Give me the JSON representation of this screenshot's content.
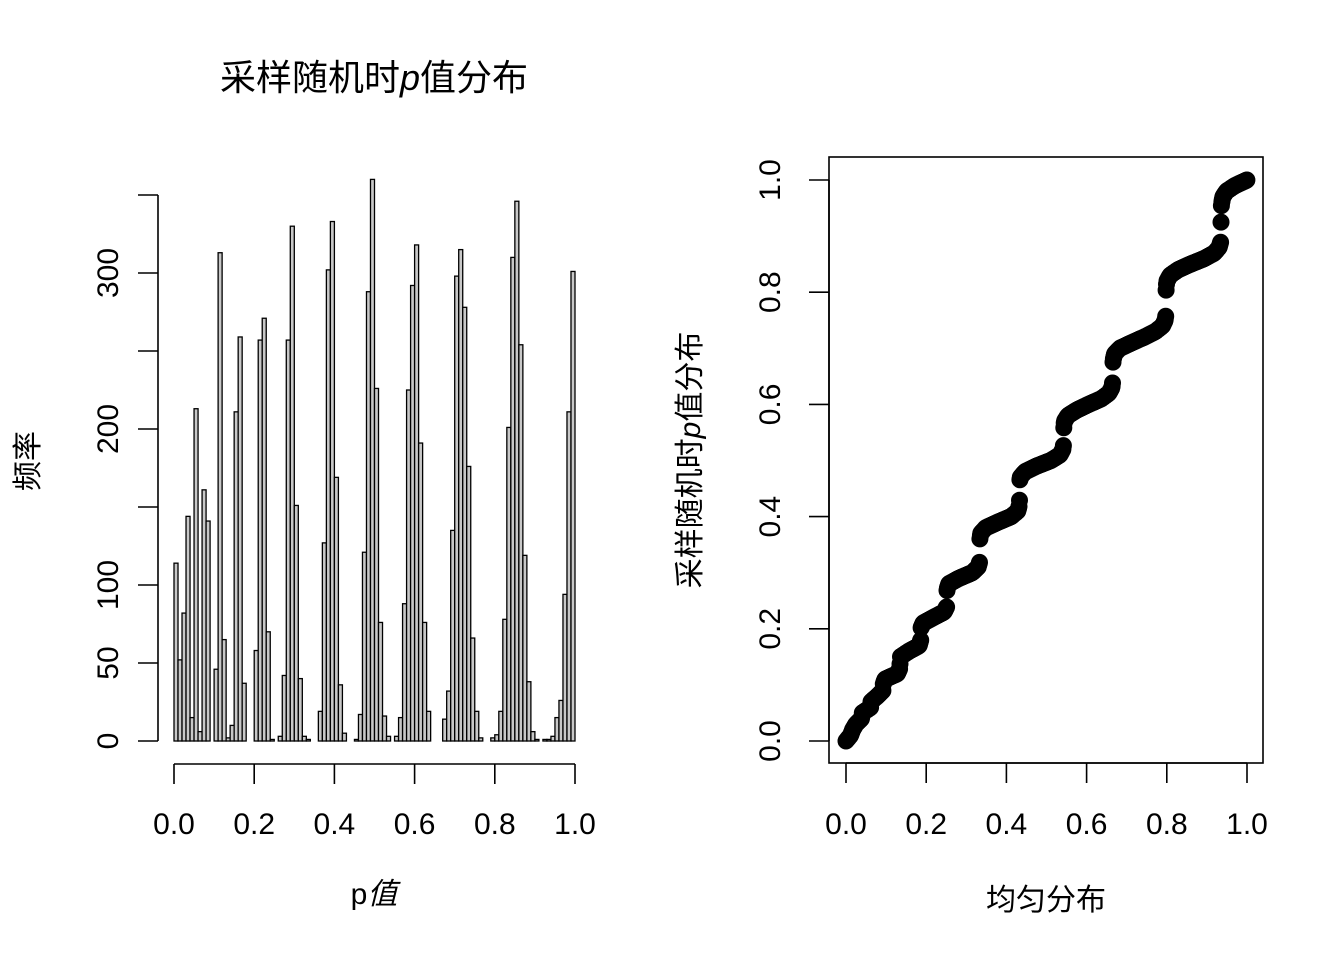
{
  "chart_data": [
    {
      "type": "bar",
      "subtype": "histogram",
      "title": "采样随机时p值分布",
      "title_parts": [
        "采样随机时",
        "p",
        "值分布"
      ],
      "xlabel": "p值",
      "xlabel_parts": [
        "p",
        "值"
      ],
      "ylabel": "频率",
      "xlim": [
        0,
        1
      ],
      "ylim": [
        0,
        350
      ],
      "bin_width": 0.01,
      "bin_start": 0.0,
      "x_ticks": [
        0.0,
        0.2,
        0.4,
        0.6,
        0.8,
        1.0
      ],
      "x_tick_labels": [
        "0.0",
        "0.2",
        "0.4",
        "0.6",
        "0.8",
        "1.0"
      ],
      "y_ticks": [
        0,
        50,
        100,
        150,
        200,
        250,
        300,
        350
      ],
      "y_tick_labels": [
        "0",
        "50",
        "100",
        "",
        "200",
        "",
        "300",
        ""
      ],
      "grid": false,
      "bar_fill": "#c8c8c8",
      "bar_stroke": "#000000",
      "values": [
        114,
        52,
        82,
        144,
        15,
        213,
        6,
        161,
        141,
        0,
        46,
        313,
        65,
        2,
        10,
        211,
        259,
        37,
        0,
        0,
        58,
        257,
        271,
        70,
        1,
        0,
        3,
        42,
        257,
        330,
        151,
        40,
        3,
        1,
        0,
        0,
        19,
        127,
        302,
        333,
        169,
        36,
        5,
        0,
        0,
        1,
        17,
        121,
        288,
        360,
        226,
        76,
        16,
        3,
        0,
        3,
        15,
        88,
        225,
        292,
        318,
        191,
        76,
        19,
        0,
        0,
        0,
        14,
        32,
        135,
        298,
        315,
        278,
        176,
        66,
        19,
        2,
        0,
        0,
        2,
        4,
        19,
        78,
        201,
        310,
        346,
        254,
        119,
        38,
        6,
        1,
        0,
        1,
        1,
        3,
        15,
        26,
        94,
        211,
        301
      ]
    },
    {
      "type": "scatter",
      "subtype": "qq",
      "title": "",
      "xlabel": "均匀分布",
      "ylabel": "采样随机时p值分布",
      "ylabel_parts": [
        "采样随机时",
        "p",
        "值分布"
      ],
      "xlim": [
        0,
        1
      ],
      "ylim": [
        0,
        1
      ],
      "x_ticks": [
        0.0,
        0.2,
        0.4,
        0.6,
        0.8,
        1.0
      ],
      "x_tick_labels": [
        "0.0",
        "0.2",
        "0.4",
        "0.6",
        "0.8",
        "1.0"
      ],
      "y_ticks": [
        0.0,
        0.2,
        0.4,
        0.6,
        0.8,
        1.0
      ],
      "y_tick_labels": [
        "0.0",
        "0.2",
        "0.4",
        "0.6",
        "0.8",
        "1.0"
      ],
      "grid": false,
      "point_color": "#000000",
      "description": "Sorted sampled p-values (y) against uniform quantiles (x); wavy staircase along the diagonal",
      "key_points": [
        {
          "x": 0.0,
          "y": 0.0
        },
        {
          "x": 0.1,
          "y": 0.11
        },
        {
          "x": 0.25,
          "y": 0.27
        },
        {
          "x": 0.33,
          "y": 0.33
        },
        {
          "x": 0.43,
          "y": 0.43
        },
        {
          "x": 0.54,
          "y": 0.53
        },
        {
          "x": 0.66,
          "y": 0.66
        },
        {
          "x": 0.8,
          "y": 0.79
        },
        {
          "x": 0.93,
          "y": 0.92
        },
        {
          "x": 1.0,
          "y": 1.0
        }
      ]
    }
  ]
}
